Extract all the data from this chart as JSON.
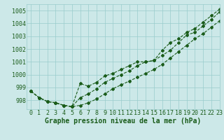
{
  "title": "Graphe pression niveau de la mer (hPa)",
  "background_color": "#cce8e8",
  "grid_color": "#99cccc",
  "line_color": "#1a5c1a",
  "xlim": [
    -0.5,
    23
  ],
  "ylim": [
    997.3,
    1005.5
  ],
  "yticks": [
    998,
    999,
    1000,
    1001,
    1002,
    1003,
    1004,
    1005
  ],
  "xticks": [
    0,
    1,
    2,
    3,
    4,
    5,
    6,
    7,
    8,
    9,
    10,
    11,
    12,
    13,
    14,
    15,
    16,
    17,
    18,
    19,
    20,
    21,
    22,
    23
  ],
  "line1": [
    998.7,
    998.2,
    997.9,
    997.8,
    997.6,
    997.5,
    997.6,
    997.8,
    998.1,
    998.5,
    998.9,
    999.2,
    999.5,
    999.8,
    1000.1,
    1000.4,
    1000.8,
    1001.3,
    1001.8,
    1002.3,
    1002.8,
    1003.2,
    1003.7,
    1004.2
  ],
  "line2": [
    998.7,
    998.2,
    997.9,
    997.8,
    997.6,
    997.5,
    998.2,
    998.5,
    998.9,
    999.4,
    999.7,
    1000.0,
    1000.3,
    1000.7,
    1001.0,
    1001.1,
    1001.5,
    1001.9,
    1002.5,
    1003.1,
    1003.3,
    1003.8,
    1004.3,
    1004.9
  ],
  "line3": [
    998.7,
    998.2,
    997.9,
    997.8,
    997.6,
    997.5,
    999.3,
    999.1,
    999.4,
    999.9,
    1000.1,
    1000.4,
    1000.7,
    1001.0,
    1001.0,
    1001.1,
    1001.9,
    1002.5,
    1002.8,
    1003.3,
    1003.6,
    1004.1,
    1004.6,
    1005.1
  ],
  "xlabel_fontsize": 6,
  "ylabel_fontsize": 6,
  "title_fontsize": 7
}
